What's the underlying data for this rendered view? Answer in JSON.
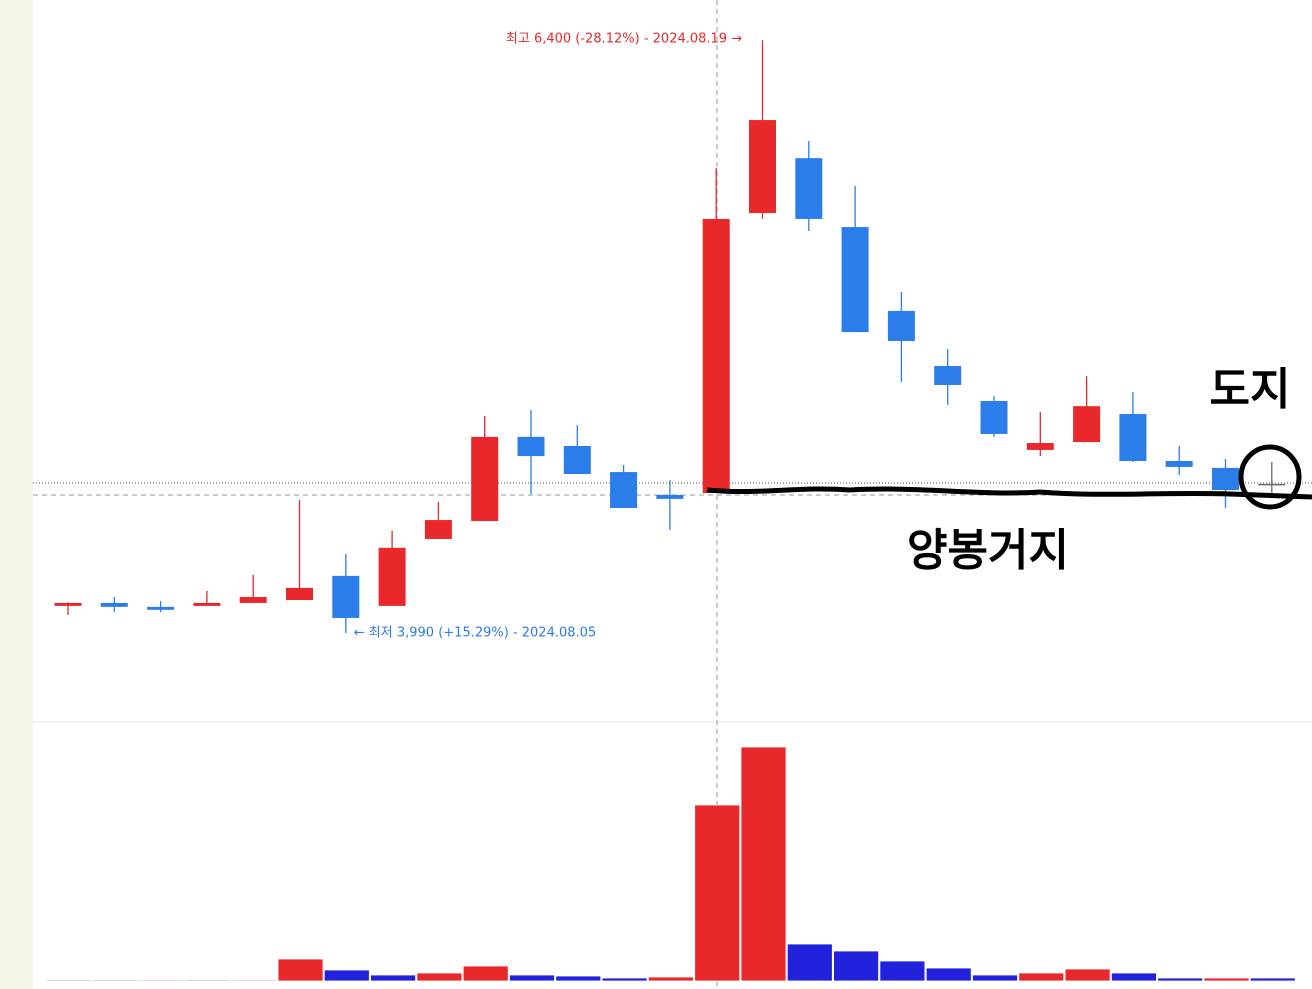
{
  "chart_data": {
    "type": "candlestick",
    "open": [
      4100,
      4112,
      4096,
      4100,
      4112,
      4124,
      4222,
      4100,
      4372,
      4445,
      4787,
      4750,
      4644,
      4551,
      4559,
      5697,
      5920,
      5640,
      5299,
      5075,
      4933,
      4734,
      4766,
      4880,
      4689,
      4661,
      4596
    ],
    "high": [
      4115,
      4136,
      4120,
      4161,
      4226,
      4530,
      4311,
      4405,
      4522,
      4872,
      4896,
      4835,
      4673,
      4612,
      5880,
      6400,
      5990,
      5807,
      5376,
      5144,
      4953,
      4888,
      5034,
      4970,
      4750,
      4697,
      4685
    ],
    "low": [
      4063,
      4075,
      4075,
      4100,
      4112,
      4124,
      3990,
      4100,
      4372,
      4445,
      4555,
      4636,
      4498,
      4409,
      4559,
      5673,
      5624,
      5213,
      5010,
      4917,
      4787,
      4709,
      4766,
      4685,
      4632,
      4498,
      4551
    ],
    "close": [
      4112,
      4096,
      4084,
      4112,
      4136,
      4173,
      4051,
      4336,
      4449,
      4787,
      4709,
      4636,
      4498,
      4535,
      5673,
      6075,
      5673,
      5213,
      5177,
      4998,
      4799,
      4762,
      4912,
      4689,
      4665,
      4571,
      4596
    ],
    "ylim": [
      3628,
      6563
    ],
    "up_color": "#e8282a",
    "down_color": "#2b7de9",
    "flat_color": "#666666",
    "volume": [
      1,
      1,
      1,
      1,
      1,
      22,
      11,
      6,
      8,
      15,
      6,
      5,
      3,
      4,
      176,
      234,
      37,
      30,
      20,
      13,
      6,
      8,
      12,
      8,
      3,
      3,
      3
    ],
    "volume_colors": [
      "#2222dd",
      "#2222dd",
      "#e8282a",
      "#2222dd",
      "#e8282a",
      "#e8282a",
      "#2222dd",
      "#2222dd",
      "#e8282a",
      "#e8282a",
      "#2222dd",
      "#2222dd",
      "#2222dd",
      "#e8282a",
      "#e8282a",
      "#e8282a",
      "#2222dd",
      "#2222dd",
      "#2222dd",
      "#2222dd",
      "#2222dd",
      "#e8282a",
      "#e8282a",
      "#2222dd",
      "#2222dd",
      "#e8282a",
      "#2222dd"
    ],
    "volume_ylim": [
      0,
      250
    ],
    "high_label": "최고 6,400 (-28.12%) - 2024.08.19 →",
    "low_label": "← 최저 3,990 (+15.29%) - 2024.08.05",
    "annotations": [
      "도지",
      "양봉거지"
    ]
  }
}
